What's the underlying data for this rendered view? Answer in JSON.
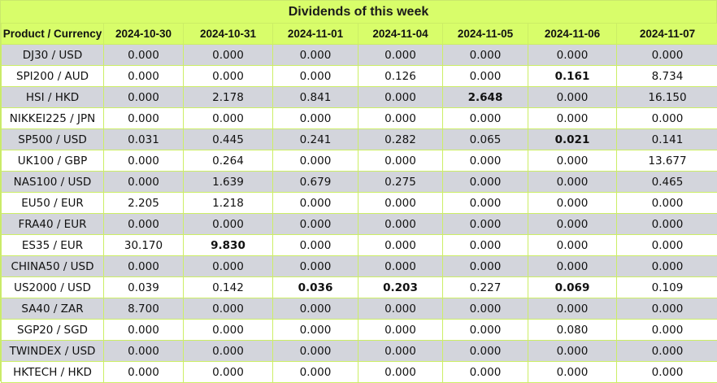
{
  "title": "Dividends of this week",
  "columns": [
    "Product / Currency",
    "2024-10-30",
    "2024-10-31",
    "2024-11-01",
    "2024-11-04",
    "2024-11-05",
    "2024-11-06",
    "2024-11-07"
  ],
  "rows": [
    {
      "product": "DJ30 / USD",
      "values": [
        "0.000",
        "0.000",
        "0.000",
        "0.000",
        "0.000",
        "0.000",
        "0.000"
      ],
      "bold": []
    },
    {
      "product": "SPI200 / AUD",
      "values": [
        "0.000",
        "0.000",
        "0.000",
        "0.126",
        "0.000",
        "0.161",
        "8.734"
      ],
      "bold": [
        5
      ]
    },
    {
      "product": "HSI / HKD",
      "values": [
        "0.000",
        "2.178",
        "0.841",
        "0.000",
        "2.648",
        "0.000",
        "16.150"
      ],
      "bold": [
        4
      ]
    },
    {
      "product": "NIKKEI225 / JPN",
      "values": [
        "0.000",
        "0.000",
        "0.000",
        "0.000",
        "0.000",
        "0.000",
        "0.000"
      ],
      "bold": []
    },
    {
      "product": "SP500 / USD",
      "values": [
        "0.031",
        "0.445",
        "0.241",
        "0.282",
        "0.065",
        "0.021",
        "0.141"
      ],
      "bold": [
        5
      ]
    },
    {
      "product": "UK100 / GBP",
      "values": [
        "0.000",
        "0.264",
        "0.000",
        "0.000",
        "0.000",
        "0.000",
        "13.677"
      ],
      "bold": []
    },
    {
      "product": "NAS100 / USD",
      "values": [
        "0.000",
        "1.639",
        "0.679",
        "0.275",
        "0.000",
        "0.000",
        "0.465"
      ],
      "bold": []
    },
    {
      "product": "EU50 / EUR",
      "values": [
        "2.205",
        "1.218",
        "0.000",
        "0.000",
        "0.000",
        "0.000",
        "0.000"
      ],
      "bold": []
    },
    {
      "product": "FRA40 / EUR",
      "values": [
        "0.000",
        "0.000",
        "0.000",
        "0.000",
        "0.000",
        "0.000",
        "0.000"
      ],
      "bold": []
    },
    {
      "product": "ES35 / EUR",
      "values": [
        "30.170",
        "9.830",
        "0.000",
        "0.000",
        "0.000",
        "0.000",
        "0.000"
      ],
      "bold": [
        1
      ]
    },
    {
      "product": "CHINA50 / USD",
      "values": [
        "0.000",
        "0.000",
        "0.000",
        "0.000",
        "0.000",
        "0.000",
        "0.000"
      ],
      "bold": []
    },
    {
      "product": "US2000 / USD",
      "values": [
        "0.039",
        "0.142",
        "0.036",
        "0.203",
        "0.227",
        "0.069",
        "0.109"
      ],
      "bold": [
        2,
        3,
        5
      ]
    },
    {
      "product": "SA40 / ZAR",
      "values": [
        "8.700",
        "0.000",
        "0.000",
        "0.000",
        "0.000",
        "0.000",
        "0.000"
      ],
      "bold": []
    },
    {
      "product": "SGP20 / SGD",
      "values": [
        "0.000",
        "0.000",
        "0.000",
        "0.000",
        "0.000",
        "0.080",
        "0.000"
      ],
      "bold": []
    },
    {
      "product": "TWINDEX / USD",
      "values": [
        "0.000",
        "0.000",
        "0.000",
        "0.000",
        "0.000",
        "0.000",
        "0.000"
      ],
      "bold": []
    },
    {
      "product": "HKTECH / HKD",
      "values": [
        "0.000",
        "0.000",
        "0.000",
        "0.000",
        "0.000",
        "0.000",
        "0.000"
      ],
      "bold": []
    }
  ]
}
